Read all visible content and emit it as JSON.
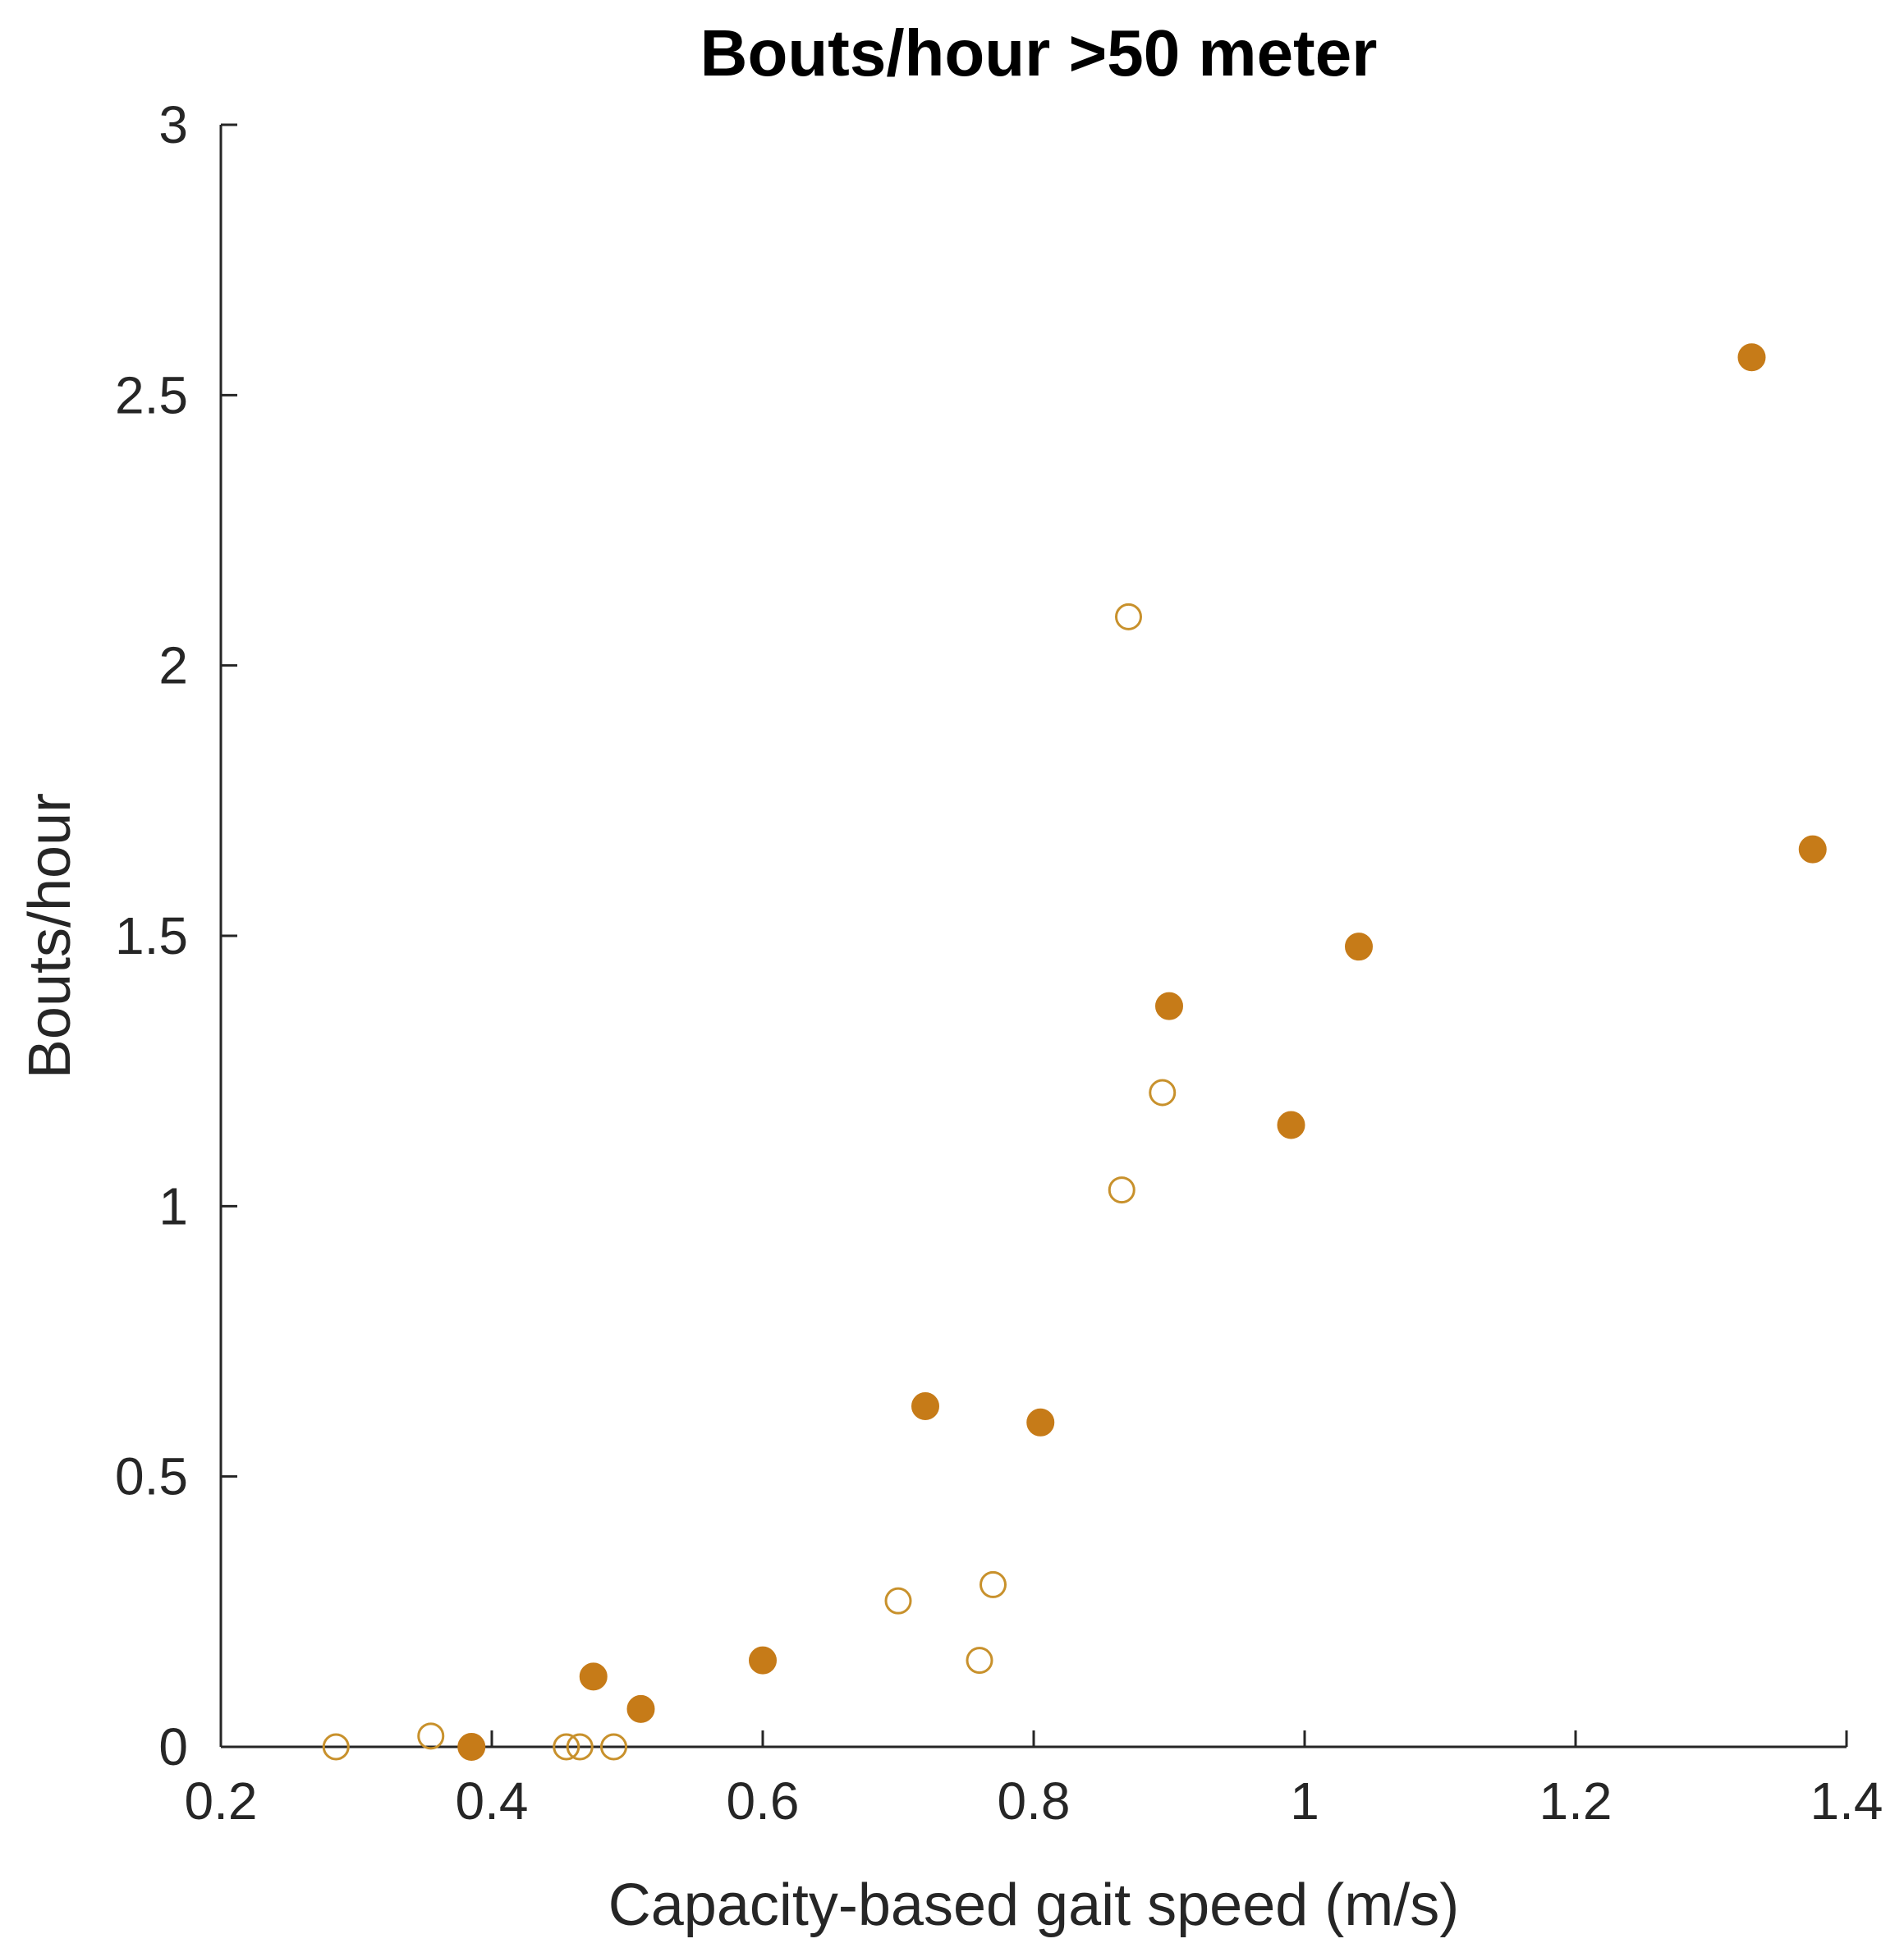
{
  "chart_data": {
    "type": "scatter",
    "title": "Bouts/hour >50 meter",
    "xlabel": "Capacity-based gait speed (m/s)",
    "ylabel": "Bouts/hour",
    "xlim": [
      0.2,
      1.4
    ],
    "ylim": [
      0,
      3
    ],
    "xticks": [
      "0.2",
      "0.4",
      "0.6",
      "0.8",
      "1",
      "1.2",
      "1.4"
    ],
    "yticks": [
      "0",
      "0.5",
      "1",
      "1.5",
      "2",
      "2.5",
      "3"
    ],
    "grid": false,
    "legend": "none",
    "series": [
      {
        "marker": "filled-circle",
        "color": "#c67b18",
        "points": [
          {
            "x": 0.385,
            "y": 0.0
          },
          {
            "x": 0.475,
            "y": 0.13
          },
          {
            "x": 0.51,
            "y": 0.07
          },
          {
            "x": 0.6,
            "y": 0.16
          },
          {
            "x": 0.72,
            "y": 0.63
          },
          {
            "x": 0.805,
            "y": 0.6
          },
          {
            "x": 0.9,
            "y": 1.37
          },
          {
            "x": 0.99,
            "y": 1.15
          },
          {
            "x": 1.04,
            "y": 1.48
          },
          {
            "x": 1.33,
            "y": 2.57
          },
          {
            "x": 1.375,
            "y": 1.66
          }
        ]
      },
      {
        "marker": "open-circle",
        "color": "#c8912c",
        "points": [
          {
            "x": 0.285,
            "y": 0.0
          },
          {
            "x": 0.355,
            "y": 0.02
          },
          {
            "x": 0.455,
            "y": 0.0
          },
          {
            "x": 0.465,
            "y": 0.0
          },
          {
            "x": 0.49,
            "y": 0.0
          },
          {
            "x": 0.7,
            "y": 0.27
          },
          {
            "x": 0.76,
            "y": 0.16
          },
          {
            "x": 0.77,
            "y": 0.3
          },
          {
            "x": 0.865,
            "y": 1.03
          },
          {
            "x": 0.87,
            "y": 2.09
          },
          {
            "x": 0.895,
            "y": 1.21
          }
        ]
      }
    ]
  }
}
